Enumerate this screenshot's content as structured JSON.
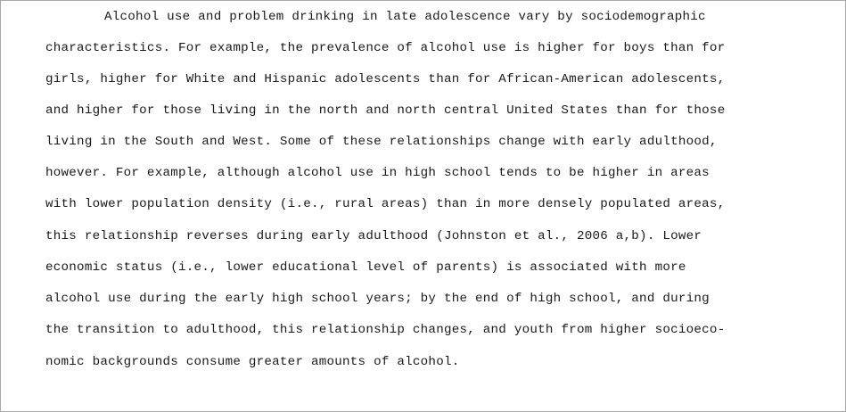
{
  "document": {
    "lines": [
      "Alcohol use and problem drinking in late adolescence vary by sociodemographic",
      "characteristics. For example, the prevalence of alcohol use is higher for boys than for",
      "girls, higher for White and Hispanic adolescents than for African-American adolescents,",
      "and higher for those living in the north and north central United States than for those",
      "living in the South and West. Some of these relationships change with early adulthood,",
      "however. For example, although alcohol use in high school tends to be higher in areas",
      "with lower population density (i.e., rural areas) than in more densely populated areas,",
      "this relationship reverses during early adulthood (Johnston et al., 2006 a,b). Lower",
      "economic status (i.e., lower educational level of parents) is associated with more",
      "alcohol use during the early high school years; by the end of high school, and during",
      "the transition to adulthood, this relationship changes, and youth from higher socioeco-",
      "nomic backgrounds consume greater amounts of alcohol."
    ]
  }
}
